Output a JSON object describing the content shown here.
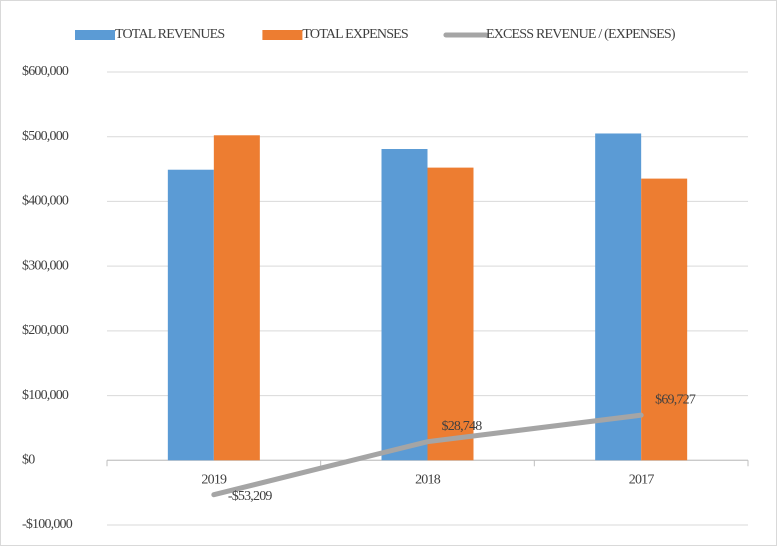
{
  "chart_data": {
    "type": "bar_line",
    "categories": [
      "2019",
      "2018",
      "2017"
    ],
    "series": [
      {
        "name": "TOTAL REVENUES",
        "color": "#5b9bd5",
        "type": "bar",
        "values": [
          449000,
          481000,
          505000
        ]
      },
      {
        "name": "TOTAL EXPENSES",
        "color": "#ed7d31",
        "type": "bar",
        "values": [
          502209,
          452252,
          435273
        ]
      },
      {
        "name": "EXCESS REVENUE / (EXPENSES)",
        "color": "#a5a5a5",
        "type": "line",
        "values": [
          -53209,
          28748,
          69727
        ],
        "value_labels": [
          "-$53,209",
          "$28,748",
          "$69,727"
        ]
      }
    ],
    "ylim": [
      -100000,
      600000
    ],
    "yticks": [
      {
        "value": -100000,
        "label": "-$100,000"
      },
      {
        "value": 0,
        "label": "$0"
      },
      {
        "value": 100000,
        "label": "$100,000"
      },
      {
        "value": 200000,
        "label": "$200,000"
      },
      {
        "value": 300000,
        "label": "$300,000"
      },
      {
        "value": 400000,
        "label": "$400,000"
      },
      {
        "value": 500000,
        "label": "$500,000"
      },
      {
        "value": 600000,
        "label": "$600,000"
      }
    ],
    "grid": true
  }
}
